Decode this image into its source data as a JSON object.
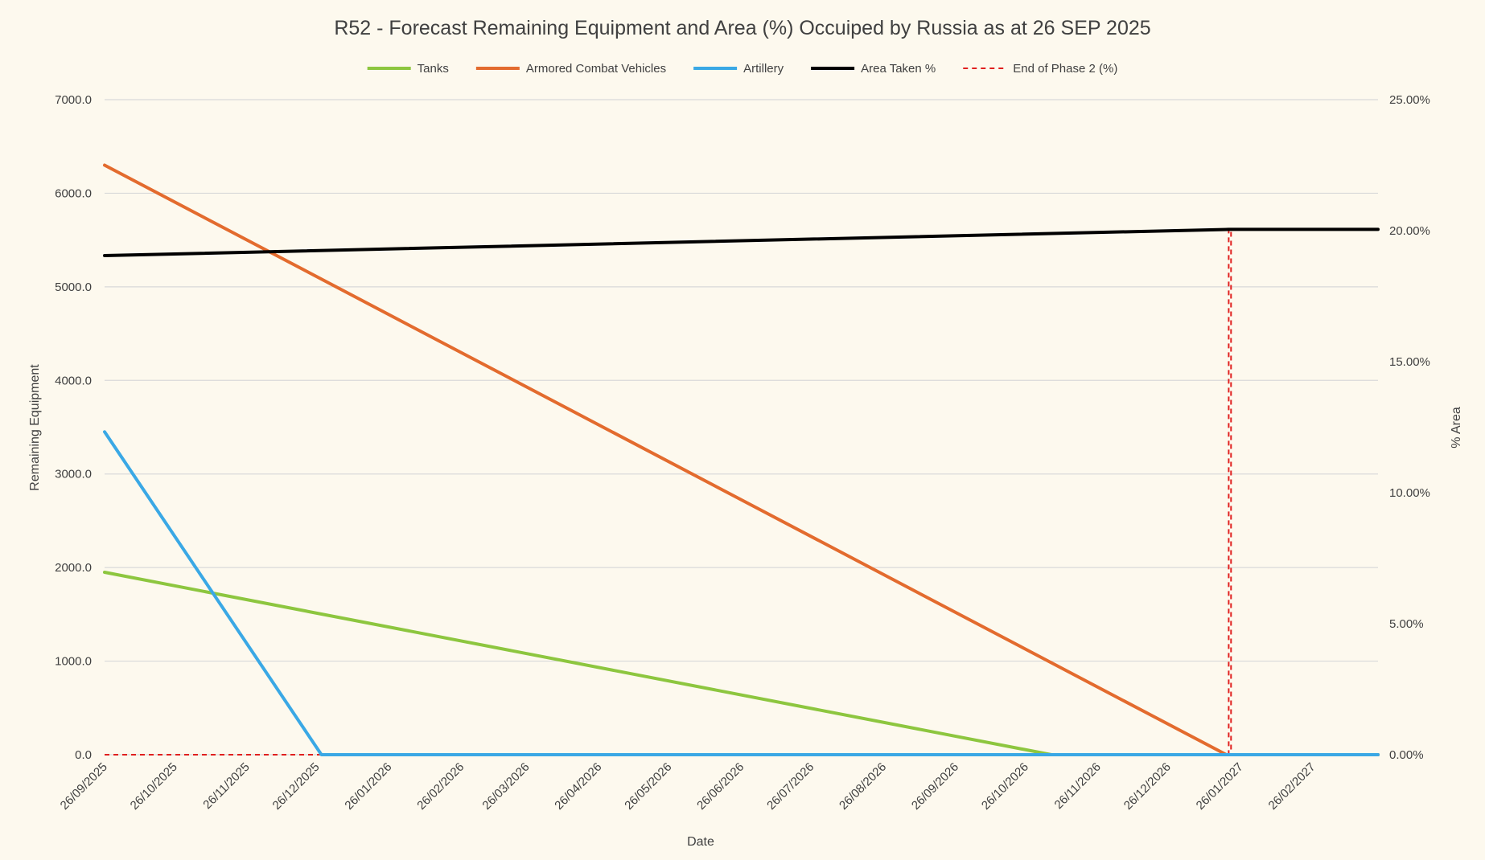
{
  "chart_data": {
    "type": "line",
    "title": "R52 - Forecast Remaining Equipment and Area (%) Occuiped by Russia as at 26 SEP 2025",
    "xlabel": "Date",
    "ylabel": "Remaining Equipment",
    "y2label": "% Area",
    "xlim": [
      "2025-09-26",
      "2027-03-26"
    ],
    "ylim": [
      0,
      7000
    ],
    "y2lim": [
      0,
      25
    ],
    "x_ticks": [
      "26/09/2025",
      "26/10/2025",
      "26/11/2025",
      "26/12/2025",
      "26/01/2026",
      "26/02/2026",
      "26/03/2026",
      "26/04/2026",
      "26/05/2026",
      "26/06/2026",
      "26/07/2026",
      "26/08/2026",
      "26/09/2026",
      "26/10/2026",
      "26/11/2026",
      "26/12/2026",
      "26/01/2027",
      "26/02/2027"
    ],
    "y_ticks": [
      "0.0",
      "1000.0",
      "2000.0",
      "3000.0",
      "4000.0",
      "5000.0",
      "6000.0",
      "7000.0"
    ],
    "y2_ticks": [
      "0.00%",
      "5.00%",
      "10.00%",
      "15.00%",
      "20.00%",
      "25.00%"
    ],
    "grid": true,
    "legend_position": "top",
    "series": [
      {
        "name": "Tanks",
        "axis": "left",
        "color": "#8dc63f",
        "dash": "solid",
        "points": [
          {
            "x": "2025-09-26",
            "y": 1950
          },
          {
            "x": "2026-11-06",
            "y": 0
          },
          {
            "x": "2027-03-26",
            "y": 0
          }
        ]
      },
      {
        "name": "Armored Combat Vehicles",
        "axis": "left",
        "color": "#e36b2e",
        "dash": "solid",
        "points": [
          {
            "x": "2025-09-26",
            "y": 6300
          },
          {
            "x": "2027-01-20",
            "y": 0
          },
          {
            "x": "2027-03-26",
            "y": 0
          }
        ]
      },
      {
        "name": "Artillery",
        "axis": "left",
        "color": "#3aa8e5",
        "dash": "solid",
        "points": [
          {
            "x": "2025-09-26",
            "y": 3450
          },
          {
            "x": "2025-12-28",
            "y": 0
          },
          {
            "x": "2027-03-26",
            "y": 0
          }
        ]
      },
      {
        "name": "Area Taken %",
        "axis": "right",
        "color": "#000000",
        "dash": "solid",
        "points": [
          {
            "x": "2025-09-26",
            "y": 19.05
          },
          {
            "x": "2027-01-21",
            "y": 20.05
          },
          {
            "x": "2027-03-26",
            "y": 20.05
          }
        ]
      },
      {
        "name": "End of Phase 2 (%)",
        "axis": "right",
        "color": "#e0201f",
        "dash": "dashed",
        "points": [
          {
            "x": "2025-09-26",
            "y": 0
          },
          {
            "x": "2027-01-21",
            "y": 0
          },
          {
            "x": "2027-01-21",
            "y": 20.05
          },
          {
            "x": "2027-01-22",
            "y": 20.05
          },
          {
            "x": "2027-01-22",
            "y": 0
          },
          {
            "x": "2027-03-26",
            "y": 0
          }
        ]
      }
    ]
  }
}
